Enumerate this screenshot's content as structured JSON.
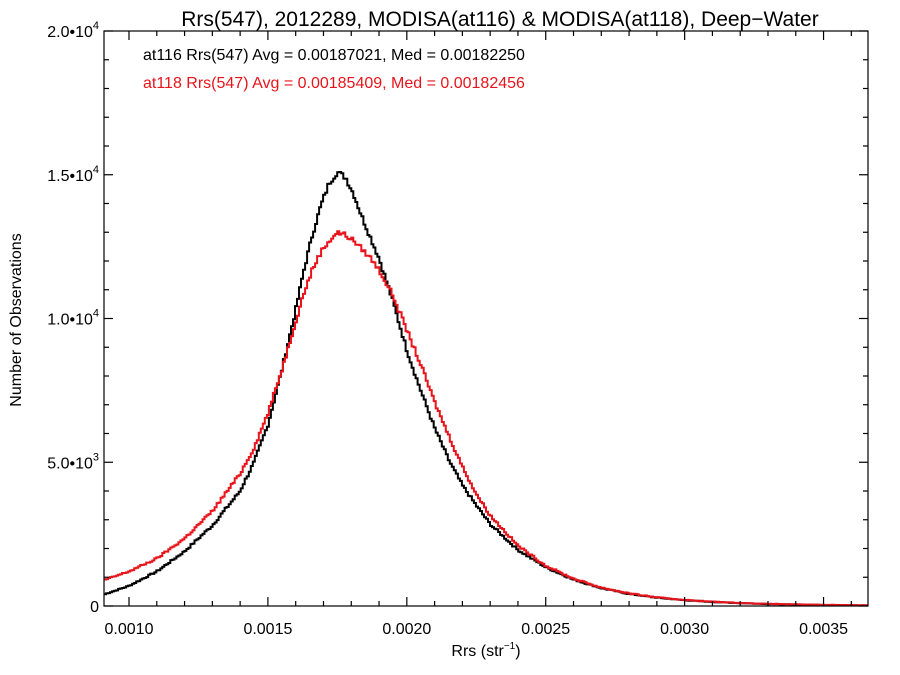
{
  "chart_data": {
    "type": "line",
    "title": "Rrs(547), 2012289, MODISA(at116) & MODISA(at118), Deep−Water",
    "xlabel": {
      "main": "Rrs (str",
      "sup": "−1",
      "end": ")"
    },
    "ylabel": "Number of Observations",
    "xlim": [
      0.00091,
      0.00366
    ],
    "ylim": [
      0,
      20000
    ],
    "x_ticks": [
      {
        "value": 0.001,
        "label": "0.0010"
      },
      {
        "value": 0.0015,
        "label": "0.0015"
      },
      {
        "value": 0.002,
        "label": "0.0020"
      },
      {
        "value": 0.0025,
        "label": "0.0025"
      },
      {
        "value": 0.003,
        "label": "0.0030"
      },
      {
        "value": 0.0035,
        "label": "0.0035"
      }
    ],
    "y_ticks": [
      {
        "value": 0,
        "mant": "0",
        "exp": ""
      },
      {
        "value": 5000,
        "mant": "5.0•10",
        "exp": "3"
      },
      {
        "value": 10000,
        "mant": "1.0•10",
        "exp": "4"
      },
      {
        "value": 15000,
        "mant": "1.5•10",
        "exp": "4"
      },
      {
        "value": 20000,
        "mant": "2.0•10",
        "exp": "4"
      }
    ],
    "annotations": [
      {
        "text": "at116 Rrs(547) Avg = 0.00187021, Med = 0.00182250",
        "color": "#000000"
      },
      {
        "text": "at118 Rrs(547) Avg = 0.00185409, Med = 0.00182456",
        "color": "#e8141c"
      }
    ],
    "series": [
      {
        "color": "#000000",
        "x": [
          0.00091,
          0.001,
          0.0011,
          0.0012,
          0.0013,
          0.0014,
          0.00145,
          0.0015,
          0.00155,
          0.0016,
          0.00163,
          0.00166,
          0.00169,
          0.00172,
          0.00175,
          0.00178,
          0.00181,
          0.00184,
          0.00187,
          0.0019,
          0.00195,
          0.002,
          0.00205,
          0.0021,
          0.00215,
          0.0022,
          0.00225,
          0.0023,
          0.0024,
          0.0025,
          0.0026,
          0.0027,
          0.0028,
          0.0029,
          0.003,
          0.0031,
          0.0032,
          0.0033,
          0.0034,
          0.0035,
          0.00366
        ],
        "y": [
          400,
          700,
          1200,
          1900,
          2800,
          4000,
          5000,
          6300,
          8200,
          10300,
          11700,
          12900,
          13900,
          14700,
          15100,
          14900,
          14300,
          13500,
          12800,
          12100,
          10600,
          8900,
          7500,
          6200,
          5100,
          4200,
          3500,
          2850,
          1950,
          1350,
          920,
          620,
          420,
          290,
          200,
          140,
          100,
          70,
          50,
          35,
          20
        ]
      },
      {
        "color": "#e8141c",
        "x": [
          0.00091,
          0.001,
          0.0011,
          0.0012,
          0.0013,
          0.0014,
          0.00145,
          0.0015,
          0.00155,
          0.0016,
          0.00163,
          0.00166,
          0.00169,
          0.00172,
          0.00175,
          0.00178,
          0.00181,
          0.00184,
          0.00187,
          0.0019,
          0.00195,
          0.002,
          0.00205,
          0.0021,
          0.00215,
          0.0022,
          0.00225,
          0.0023,
          0.0024,
          0.0025,
          0.0026,
          0.0027,
          0.0028,
          0.0029,
          0.003,
          0.0031,
          0.0032,
          0.0033,
          0.0034,
          0.0035,
          0.00366
        ],
        "y": [
          900,
          1200,
          1650,
          2350,
          3300,
          4600,
          5500,
          6700,
          8200,
          9900,
          10900,
          11700,
          12300,
          12700,
          13000,
          12900,
          12700,
          12400,
          12100,
          11700,
          10800,
          9600,
          8400,
          7100,
          5950,
          4850,
          3900,
          3150,
          2100,
          1400,
          950,
          640,
          440,
          300,
          210,
          150,
          105,
          75,
          55,
          40,
          25
        ]
      }
    ]
  }
}
